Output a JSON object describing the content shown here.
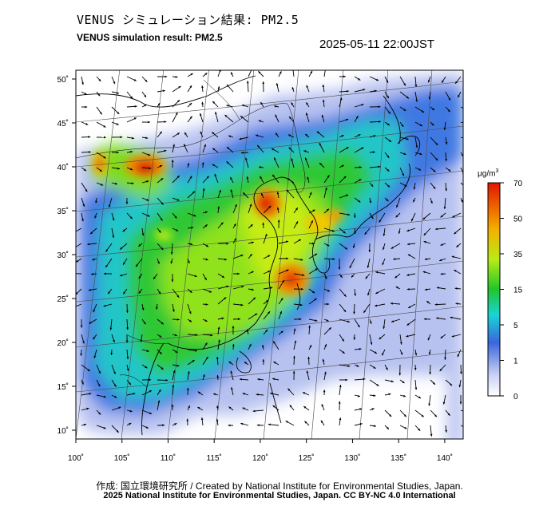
{
  "header": {
    "title_jp": "VENUS シミュレーション結果: PM2.5",
    "title_en": "VENUS simulation result: PM2.5",
    "timestamp": "2025-05-11 22:00JST"
  },
  "map": {
    "lon_ticks": [
      "100˚",
      "105˚",
      "110˚",
      "115˚",
      "120˚",
      "125˚",
      "130˚",
      "135˚",
      "140˚"
    ],
    "lat_ticks": [
      "10˚",
      "15˚",
      "20˚",
      "25˚",
      "30˚",
      "35˚",
      "40˚",
      "45˚",
      "50˚"
    ],
    "lon_values": [
      100,
      105,
      110,
      115,
      120,
      125,
      130,
      135,
      140
    ],
    "lat_values": [
      10,
      15,
      20,
      25,
      30,
      35,
      40,
      45,
      50
    ],
    "extent": {
      "lon_min": 100,
      "lon_max": 142,
      "lat_min": 9,
      "lat_max": 51
    },
    "quantity": "PM2.5",
    "hotspots": [
      {
        "lon": 107.5,
        "lat": 39.0,
        "level": 68
      },
      {
        "lon": 120.5,
        "lat": 35.5,
        "level": 62
      },
      {
        "lon": 123.0,
        "lat": 27.5,
        "level": 55
      },
      {
        "lon": 126.0,
        "lat": 33.0,
        "level": 40
      }
    ]
  },
  "colorbar": {
    "unit": "μg/m",
    "unit_sup": "3",
    "labels": [
      "0",
      "1",
      "5",
      "15",
      "35",
      "50",
      "70"
    ],
    "colors": [
      "#ffffff",
      "#b8c4f2",
      "#2f6ee0",
      "#18d8d0",
      "#22c82a",
      "#c8ee10",
      "#f0a000",
      "#e81a00"
    ]
  },
  "credits": {
    "line1": "作成: 国立環境研究所 / Created by National Institute for Environmental Studies, Japan.",
    "line2": "2025 National Institute for Environmental Studies, Japan. CC BY-NC 4.0 International"
  }
}
